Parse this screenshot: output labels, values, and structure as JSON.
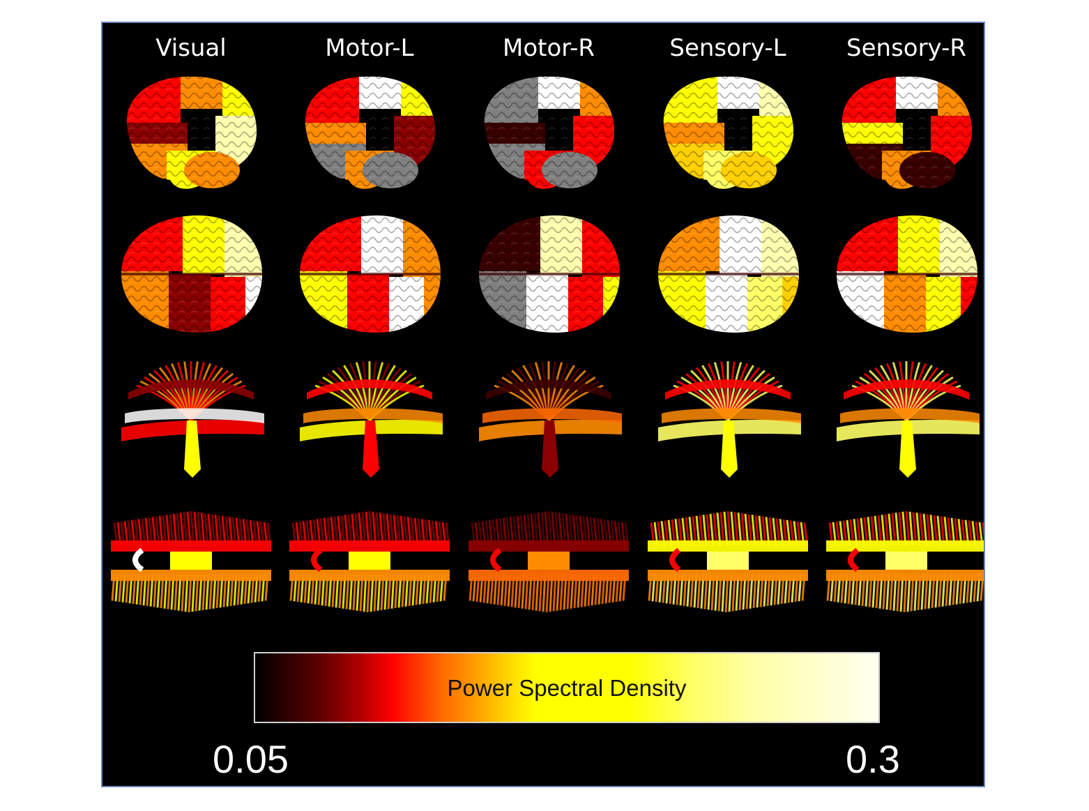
{
  "columns": [
    {
      "title": "Visual"
    },
    {
      "title": "Motor-L"
    },
    {
      "title": "Motor-R"
    },
    {
      "title": "Sensory-L"
    },
    {
      "title": "Sensory-R"
    }
  ],
  "colorbar": {
    "label": "Power Spectral Density",
    "min_label": "0.05",
    "max_label": "0.3",
    "colors": [
      "#000000",
      "#8b0000",
      "#ff0000",
      "#ff8000",
      "#ffff00",
      "#ffffb0",
      "#ffffff"
    ]
  },
  "views": [
    {
      "name": "cortex-lateral",
      "panels": [
        [
          "#ff0000",
          "#ff8c00",
          "#ffff00",
          "#8b0000",
          "#ffffb0",
          "#ff8c00",
          "#ffff00"
        ],
        [
          "#ff0000",
          "#ffffff",
          "#ffff00",
          "#ff8c00",
          "#8b0000",
          "#808080",
          "#ff8c00"
        ],
        [
          "#808080",
          "#ffffff",
          "#ff8c00",
          "#3a0000",
          "#ff0000",
          "#808080",
          "#ff0000"
        ],
        [
          "#ffff00",
          "#ffffff",
          "#ffffb0",
          "#ff8c00",
          "#ffff00",
          "#ffd000",
          "#ffff66"
        ],
        [
          "#ff0000",
          "#ffffff",
          "#ff8c00",
          "#ffff00",
          "#ff0000",
          "#3a0000",
          "#ff8c00"
        ]
      ]
    },
    {
      "name": "cortex-dorsal",
      "panels": [
        [
          "#ff0000",
          "#ffff00",
          "#ffffb0",
          "#ff8c00",
          "#8b0000",
          "#ff0000",
          "#ffffff"
        ],
        [
          "#ff0000",
          "#ffffff",
          "#ff8c00",
          "#ffff00",
          "#ff0000",
          "#ffffff",
          "#ff8c00"
        ],
        [
          "#3a0000",
          "#ffffb0",
          "#ff0000",
          "#808080",
          "#ffffff",
          "#ff0000",
          "#ffff00"
        ],
        [
          "#ff8c00",
          "#ffffff",
          "#ffffb0",
          "#ffff00",
          "#ffffff",
          "#ffff66",
          "#ffd000"
        ],
        [
          "#ff0000",
          "#ffff00",
          "#ffffb0",
          "#ffffff",
          "#ff8c00",
          "#ffff00",
          "#ff0000"
        ]
      ]
    },
    {
      "name": "tracts-lateral",
      "panels": [
        [
          "#ff8c00",
          "#ffff00",
          "#ffffff",
          "#ff0000",
          "#8b0000"
        ],
        [
          "#8b0000",
          "#ff0000",
          "#ff8c00",
          "#ffff00",
          "#ff0000"
        ],
        [
          "#5a0000",
          "#8b0000",
          "#ff6a00",
          "#ff8c00",
          "#3a0000"
        ],
        [
          "#ff0000",
          "#ffff00",
          "#ff8c00",
          "#ffff66",
          "#ff0000"
        ],
        [
          "#ff0000",
          "#ffff00",
          "#ff8c00",
          "#ffff66",
          "#ff0000"
        ]
      ]
    },
    {
      "name": "tracts-dorsal",
      "panels": [
        [
          "#8b0000",
          "#ff0000",
          "#ff8c00",
          "#ffff00",
          "#ffffff"
        ],
        [
          "#8b0000",
          "#ff0000",
          "#ff8c00",
          "#ffff00",
          "#ff0000"
        ],
        [
          "#5a0000",
          "#8b0000",
          "#ff6a00",
          "#ff8c00",
          "#ff0000"
        ],
        [
          "#ff0000",
          "#ffff00",
          "#ff8c00",
          "#ffff66",
          "#ff0000"
        ],
        [
          "#ff0000",
          "#ffff00",
          "#ff8c00",
          "#ffff66",
          "#ff0000"
        ]
      ]
    }
  ]
}
